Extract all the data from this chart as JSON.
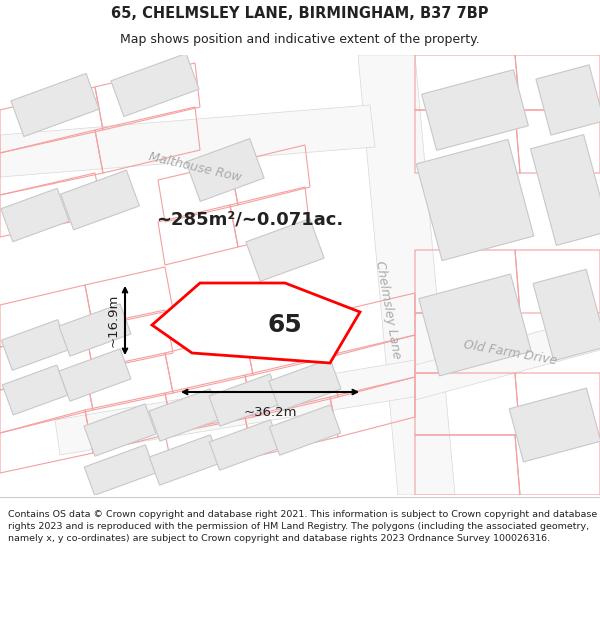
{
  "title_line1": "65, CHELMSLEY LANE, BIRMINGHAM, B37 7BP",
  "title_line2": "Map shows position and indicative extent of the property.",
  "area_label": "~285m²/~0.071ac.",
  "width_label": "~36.2m",
  "height_label": "~16.9m",
  "property_number": "65",
  "road_label_1": "Malthouse Row",
  "road_label_2": "Chelmsley Lane",
  "road_label_3": "Old Farm Drive",
  "footer_lines": [
    "Contains OS data © Crown copyright and database right 2021. This information is subject to Crown copyright and database rights",
    "2023 and is reproduced with the permission of HM Land Registry. The polygons (including the associated geometry, namely x, y",
    "co-ordinates) are subject to Crown copyright and database rights 2023 Ordnance Survey",
    "100026316."
  ],
  "map_bg": "#ffffff",
  "road_color": "#f0f0f0",
  "block_light": "#e8e8e8",
  "block_dark": "#d8d8d8",
  "block_edge": "#c8c8c8",
  "pink": "#f5a0a0",
  "red": "#ff0000",
  "text_dark": "#222222",
  "text_grey": "#aaaaaa",
  "title_fontsize": 10.5,
  "subtitle_fontsize": 9,
  "area_fontsize": 13,
  "dim_fontsize": 9.5,
  "road_fontsize": 9,
  "num_fontsize": 18,
  "footer_fontsize": 6.8,
  "figsize": [
    6.0,
    6.25
  ],
  "dpi": 100
}
